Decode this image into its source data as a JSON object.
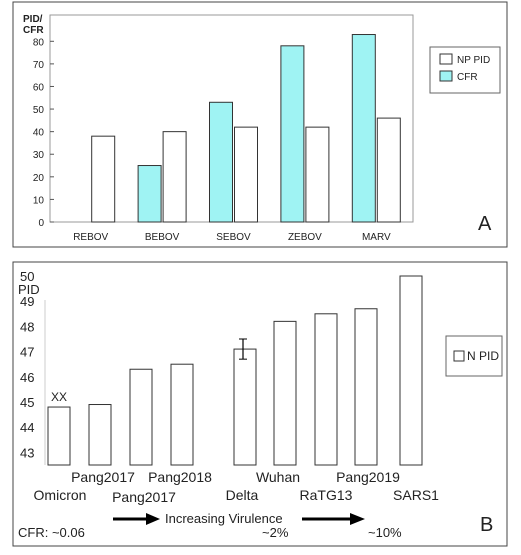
{
  "chart_data": [
    {
      "type": "bar",
      "panel_label": "A",
      "ylabel": "PID/\nCFR",
      "ylim": [
        0,
        85
      ],
      "yticks": [
        0,
        10,
        20,
        30,
        40,
        50,
        60,
        70,
        80
      ],
      "categories": [
        "REBOV",
        "BEBOV",
        "SEBOV",
        "ZEBOV",
        "MARV"
      ],
      "series": [
        {
          "name": "NP PID",
          "color": "#ffffff",
          "values": [
            38,
            40,
            42,
            42,
            46
          ]
        },
        {
          "name": "CFR",
          "color": "#9ff3f3",
          "values": [
            null,
            25,
            53,
            78,
            83
          ]
        }
      ],
      "legend_position": "right"
    },
    {
      "type": "bar",
      "panel_label": "B",
      "ylabel": "PID",
      "ylim": [
        42.5,
        50.5
      ],
      "yticks": [
        43,
        44,
        45,
        46,
        47,
        48,
        49,
        50
      ],
      "categories": [
        "Omicron",
        "Pang2017",
        "Pang2017",
        "Pang2018",
        "Delta",
        "Wuhan",
        "RaTG13",
        "Pang2019",
        "SARS1"
      ],
      "series": [
        {
          "name": "N PID",
          "color": "#ffffff",
          "values": [
            44.8,
            44.9,
            46.3,
            46.5,
            47.1,
            48.2,
            48.5,
            48.7,
            50.0
          ]
        }
      ],
      "error_bar": {
        "category": "Delta",
        "low": 46.7,
        "high": 47.5
      },
      "annotations": {
        "omicron_mark": "XX"
      },
      "legend_position": "right"
    }
  ],
  "footer": {
    "cfr_label": "CFR: ~0.06",
    "arrow_text": "Increasing Virulence",
    "pct_mid": "~2%",
    "pct_high": "~10%"
  }
}
